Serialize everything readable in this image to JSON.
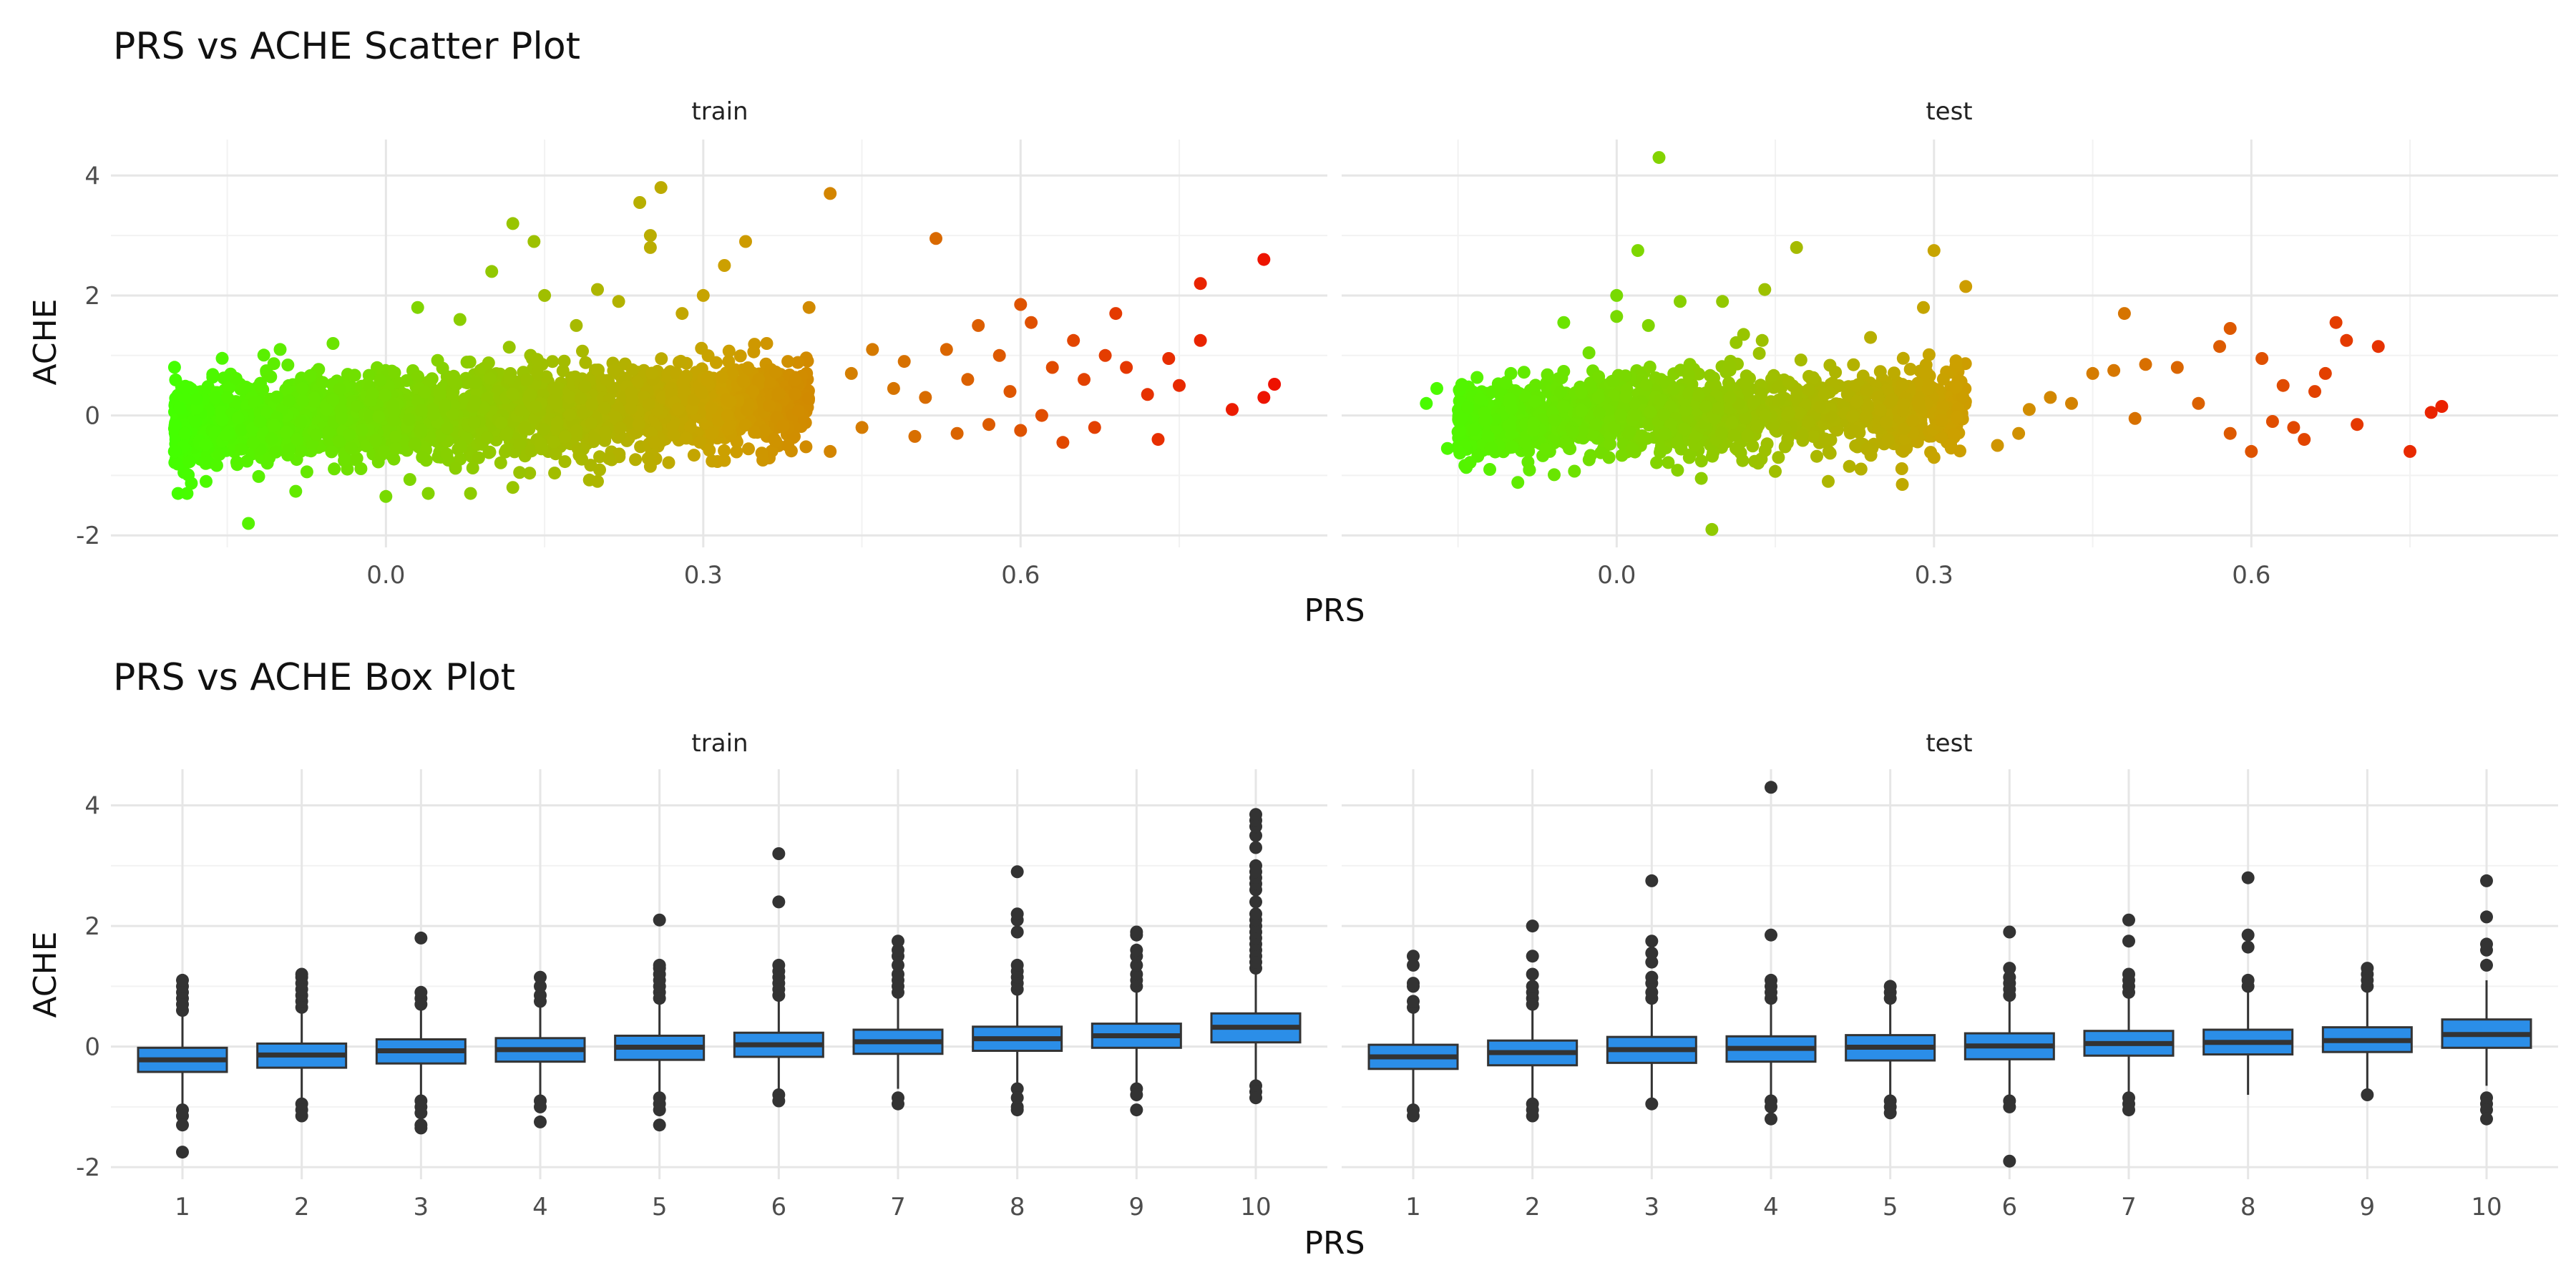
{
  "chart_data": [
    {
      "type": "scatter",
      "title": "PRS vs ACHE Scatter Plot",
      "xlabel": "PRS",
      "ylabel": "ACHE",
      "xlim": [
        -0.26,
        0.89
      ],
      "ylim": [
        -2.2,
        4.6
      ],
      "x_ticks": [
        "0.0",
        "0.3",
        "0.6"
      ],
      "x_tick_values": [
        0.0,
        0.3,
        0.6
      ],
      "y_ticks": [
        "-2",
        "0",
        "2",
        "4"
      ],
      "y_tick_values": [
        -2,
        0,
        2,
        4
      ],
      "grid": true,
      "legend": "none",
      "color_scale": {
        "low": "#44ff00",
        "mid": "#cca000",
        "high": "#ee1100",
        "domain": [
          -0.2,
          0.84
        ]
      },
      "facets": [
        {
          "name": "train",
          "core": {
            "x_range": [
              -0.2,
              0.4
            ],
            "y_mean": 0.0,
            "y_sd": 0.35
          },
          "points": [
            [
              0.84,
              0.52
            ],
            [
              0.83,
              0.3
            ],
            [
              0.83,
              2.6
            ],
            [
              0.8,
              0.1
            ],
            [
              0.77,
              2.2
            ],
            [
              0.77,
              1.25
            ],
            [
              0.75,
              0.5
            ],
            [
              0.74,
              0.95
            ],
            [
              0.73,
              -0.4
            ],
            [
              0.72,
              0.35
            ],
            [
              0.7,
              0.8
            ],
            [
              0.69,
              1.7
            ],
            [
              0.68,
              1.0
            ],
            [
              0.67,
              -0.2
            ],
            [
              0.66,
              0.6
            ],
            [
              0.65,
              1.25
            ],
            [
              0.64,
              -0.45
            ],
            [
              0.63,
              0.8
            ],
            [
              0.62,
              0.0
            ],
            [
              0.61,
              1.55
            ],
            [
              0.6,
              -0.25
            ],
            [
              0.6,
              1.85
            ],
            [
              0.59,
              0.4
            ],
            [
              0.58,
              1.0
            ],
            [
              0.57,
              -0.15
            ],
            [
              0.56,
              1.5
            ],
            [
              0.55,
              0.6
            ],
            [
              0.54,
              -0.3
            ],
            [
              0.53,
              1.1
            ],
            [
              0.52,
              2.95
            ],
            [
              0.51,
              0.3
            ],
            [
              0.5,
              -0.35
            ],
            [
              0.49,
              0.9
            ],
            [
              0.48,
              0.45
            ],
            [
              0.46,
              1.1
            ],
            [
              0.45,
              -0.2
            ],
            [
              0.44,
              0.7
            ],
            [
              0.42,
              3.7
            ],
            [
              0.42,
              -0.6
            ],
            [
              0.4,
              1.8
            ],
            [
              0.38,
              0.9
            ],
            [
              0.36,
              1.2
            ],
            [
              0.34,
              2.9
            ],
            [
              0.32,
              2.5
            ],
            [
              0.3,
              2.0
            ],
            [
              0.28,
              1.7
            ],
            [
              0.26,
              3.8
            ],
            [
              0.24,
              3.55
            ],
            [
              0.25,
              3.0
            ],
            [
              0.25,
              2.8
            ],
            [
              0.22,
              1.9
            ],
            [
              0.2,
              2.1
            ],
            [
              0.18,
              1.5
            ],
            [
              0.15,
              2.0
            ],
            [
              0.14,
              2.9
            ],
            [
              0.12,
              3.2
            ],
            [
              0.1,
              2.4
            ],
            [
              0.07,
              1.6
            ],
            [
              0.03,
              1.8
            ],
            [
              -0.1,
              1.1
            ],
            [
              -0.05,
              1.2
            ],
            [
              0.0,
              -1.35
            ],
            [
              0.04,
              -1.3
            ],
            [
              0.08,
              -1.3
            ],
            [
              -0.13,
              -1.8
            ],
            [
              -0.17,
              -1.1
            ],
            [
              0.12,
              -1.2
            ],
            [
              0.2,
              -1.1
            ],
            [
              0.25,
              -0.85
            ],
            [
              0.32,
              -0.75
            ],
            [
              0.38,
              -0.5
            ],
            [
              -0.2,
              -0.6
            ],
            [
              -0.19,
              -0.3
            ],
            [
              -0.15,
              0.3
            ]
          ]
        },
        {
          "name": "test",
          "core": {
            "x_range": [
              -0.15,
              0.33
            ],
            "y_mean": 0.0,
            "y_sd": 0.33
          },
          "points": [
            [
              0.78,
              0.15
            ],
            [
              0.77,
              0.05
            ],
            [
              0.75,
              -0.6
            ],
            [
              0.72,
              1.15
            ],
            [
              0.7,
              -0.15
            ],
            [
              0.69,
              1.25
            ],
            [
              0.68,
              1.55
            ],
            [
              0.67,
              0.7
            ],
            [
              0.66,
              0.4
            ],
            [
              0.65,
              -0.4
            ],
            [
              0.64,
              -0.2
            ],
            [
              0.63,
              0.5
            ],
            [
              0.62,
              -0.1
            ],
            [
              0.61,
              0.95
            ],
            [
              0.6,
              -0.6
            ],
            [
              0.58,
              -0.3
            ],
            [
              0.58,
              1.45
            ],
            [
              0.57,
              1.15
            ],
            [
              0.55,
              0.2
            ],
            [
              0.53,
              0.8
            ],
            [
              0.5,
              0.85
            ],
            [
              0.49,
              -0.05
            ],
            [
              0.48,
              1.7
            ],
            [
              0.47,
              0.75
            ],
            [
              0.45,
              0.7
            ],
            [
              0.43,
              0.2
            ],
            [
              0.41,
              0.3
            ],
            [
              0.39,
              0.1
            ],
            [
              0.38,
              -0.3
            ],
            [
              0.36,
              -0.5
            ],
            [
              0.33,
              2.15
            ],
            [
              0.3,
              2.75
            ],
            [
              0.29,
              1.8
            ],
            [
              0.27,
              -1.15
            ],
            [
              0.24,
              1.3
            ],
            [
              0.17,
              2.8
            ],
            [
              0.14,
              2.1
            ],
            [
              0.12,
              1.35
            ],
            [
              0.1,
              1.9
            ],
            [
              0.06,
              1.9
            ],
            [
              0.04,
              4.3
            ],
            [
              0.03,
              1.5
            ],
            [
              0.0,
              2.0
            ],
            [
              0.0,
              1.65
            ],
            [
              0.02,
              2.75
            ],
            [
              0.09,
              -1.9
            ],
            [
              -0.05,
              1.55
            ],
            [
              -0.1,
              0.7
            ],
            [
              -0.17,
              0.45
            ],
            [
              -0.18,
              0.2
            ],
            [
              0.08,
              -1.05
            ],
            [
              0.2,
              -1.1
            ],
            [
              0.22,
              -0.85
            ],
            [
              0.3,
              -0.7
            ],
            [
              -0.12,
              -0.9
            ],
            [
              -0.16,
              -0.55
            ]
          ]
        }
      ]
    },
    {
      "type": "box",
      "title": "PRS vs ACHE Box Plot",
      "xlabel": "PRS",
      "ylabel": "ACHE",
      "categories": [
        "1",
        "2",
        "3",
        "4",
        "5",
        "6",
        "7",
        "8",
        "9",
        "10"
      ],
      "ylim": [
        -2.2,
        4.6
      ],
      "y_ticks": [
        "-2",
        "0",
        "2",
        "4"
      ],
      "y_tick_values": [
        -2,
        0,
        2,
        4
      ],
      "fill": "#2b8ee8",
      "outline": "#333333",
      "grid": true,
      "facets": [
        {
          "name": "train",
          "boxes": [
            {
              "q1": -0.42,
              "median": -0.22,
              "q3": -0.02,
              "wlo": -1.0,
              "whi": 0.55,
              "outliers": [
                0.6,
                0.7,
                0.8,
                0.9,
                1.0,
                1.1,
                -1.05,
                -1.15,
                -1.3,
                -1.75
              ]
            },
            {
              "q1": -0.35,
              "median": -0.14,
              "q3": 0.05,
              "wlo": -0.9,
              "whi": 0.6,
              "outliers": [
                0.65,
                0.75,
                0.85,
                0.95,
                1.05,
                1.15,
                1.2,
                -0.95,
                -1.05,
                -1.15
              ]
            },
            {
              "q1": -0.28,
              "median": -0.07,
              "q3": 0.12,
              "wlo": -0.85,
              "whi": 0.65,
              "outliers": [
                0.7,
                0.8,
                0.9,
                1.8,
                -0.9,
                -1.0,
                -1.1,
                -1.3,
                -1.35
              ]
            },
            {
              "q1": -0.25,
              "median": -0.05,
              "q3": 0.14,
              "wlo": -0.8,
              "whi": 0.7,
              "outliers": [
                0.75,
                0.85,
                1.0,
                1.15,
                -0.9,
                -1.0,
                -1.25
              ]
            },
            {
              "q1": -0.22,
              "median": -0.01,
              "q3": 0.18,
              "wlo": -0.78,
              "whi": 0.75,
              "outliers": [
                0.8,
                0.9,
                1.0,
                1.1,
                1.2,
                1.3,
                1.35,
                2.1,
                -0.85,
                -0.95,
                -1.05,
                -1.3
              ]
            },
            {
              "q1": -0.17,
              "median": 0.03,
              "q3": 0.23,
              "wlo": -0.75,
              "whi": 0.8,
              "outliers": [
                0.85,
                0.95,
                1.05,
                1.15,
                1.25,
                1.35,
                2.4,
                3.2,
                -0.8,
                -0.9
              ]
            },
            {
              "q1": -0.12,
              "median": 0.08,
              "q3": 0.28,
              "wlo": -0.7,
              "whi": 0.85,
              "outliers": [
                0.9,
                1.0,
                1.1,
                1.2,
                1.35,
                1.5,
                1.6,
                1.75,
                -0.85,
                -0.95
              ]
            },
            {
              "q1": -0.07,
              "median": 0.13,
              "q3": 0.33,
              "wlo": -0.65,
              "whi": 0.9,
              "outliers": [
                0.95,
                1.05,
                1.15,
                1.25,
                1.35,
                1.9,
                2.1,
                2.2,
                2.9,
                -0.7,
                -0.85,
                -1.0,
                -1.05
              ]
            },
            {
              "q1": -0.02,
              "median": 0.18,
              "q3": 0.38,
              "wlo": -0.6,
              "whi": 0.95,
              "outliers": [
                1.0,
                1.1,
                1.2,
                1.35,
                1.5,
                1.6,
                1.85,
                1.9,
                -0.7,
                -0.8,
                -1.05
              ]
            },
            {
              "q1": 0.07,
              "median": 0.32,
              "q3": 0.55,
              "wlo": -0.55,
              "whi": 1.2,
              "outliers": [
                1.3,
                1.4,
                1.5,
                1.6,
                1.7,
                1.8,
                1.9,
                2.0,
                2.1,
                2.2,
                2.4,
                2.6,
                2.7,
                2.8,
                2.9,
                3.0,
                3.3,
                3.5,
                3.65,
                3.75,
                3.85,
                -0.65,
                -0.75,
                -0.85
              ]
            }
          ]
        },
        {
          "name": "test",
          "boxes": [
            {
              "q1": -0.37,
              "median": -0.17,
              "q3": 0.03,
              "wlo": -0.95,
              "whi": 0.6,
              "outliers": [
                0.65,
                0.75,
                1.0,
                1.05,
                1.35,
                1.5,
                -1.05,
                -1.15
              ]
            },
            {
              "q1": -0.31,
              "median": -0.1,
              "q3": 0.1,
              "wlo": -0.9,
              "whi": 0.65,
              "outliers": [
                0.7,
                0.8,
                0.9,
                1.0,
                1.2,
                1.5,
                2.0,
                -0.95,
                -1.05,
                -1.15
              ]
            },
            {
              "q1": -0.27,
              "median": -0.05,
              "q3": 0.16,
              "wlo": -0.85,
              "whi": 0.7,
              "outliers": [
                0.8,
                0.9,
                1.05,
                1.15,
                1.4,
                1.55,
                1.75,
                2.75,
                -0.95
              ]
            },
            {
              "q1": -0.25,
              "median": -0.03,
              "q3": 0.17,
              "wlo": -0.85,
              "whi": 0.7,
              "outliers": [
                0.8,
                0.9,
                1.0,
                1.1,
                1.85,
                4.3,
                -0.9,
                -1.0,
                -1.2
              ]
            },
            {
              "q1": -0.23,
              "median": -0.01,
              "q3": 0.19,
              "wlo": -0.85,
              "whi": 0.75,
              "outliers": [
                0.8,
                0.9,
                1.0,
                -0.9,
                -1.0,
                -1.1
              ]
            },
            {
              "q1": -0.21,
              "median": 0.01,
              "q3": 0.22,
              "wlo": -0.85,
              "whi": 0.8,
              "outliers": [
                0.85,
                0.95,
                1.05,
                1.15,
                1.3,
                1.9,
                -0.9,
                -1.0,
                -1.9
              ]
            },
            {
              "q1": -0.15,
              "median": 0.05,
              "q3": 0.26,
              "wlo": -0.8,
              "whi": 0.85,
              "outliers": [
                0.9,
                1.0,
                1.1,
                1.2,
                1.75,
                2.1,
                -0.85,
                -0.95,
                -1.05
              ]
            },
            {
              "q1": -0.13,
              "median": 0.07,
              "q3": 0.28,
              "wlo": -0.8,
              "whi": 0.9,
              "outliers": [
                1.0,
                1.1,
                1.65,
                1.85,
                2.8
              ]
            },
            {
              "q1": -0.09,
              "median": 0.1,
              "q3": 0.32,
              "wlo": -0.75,
              "whi": 0.95,
              "outliers": [
                1.0,
                1.1,
                1.2,
                1.3,
                -0.8
              ]
            },
            {
              "q1": -0.02,
              "median": 0.2,
              "q3": 0.45,
              "wlo": -0.65,
              "whi": 1.1,
              "outliers": [
                1.35,
                1.6,
                1.7,
                2.15,
                2.75,
                -0.85,
                -0.95,
                -1.05,
                -1.2
              ]
            }
          ]
        }
      ]
    }
  ]
}
